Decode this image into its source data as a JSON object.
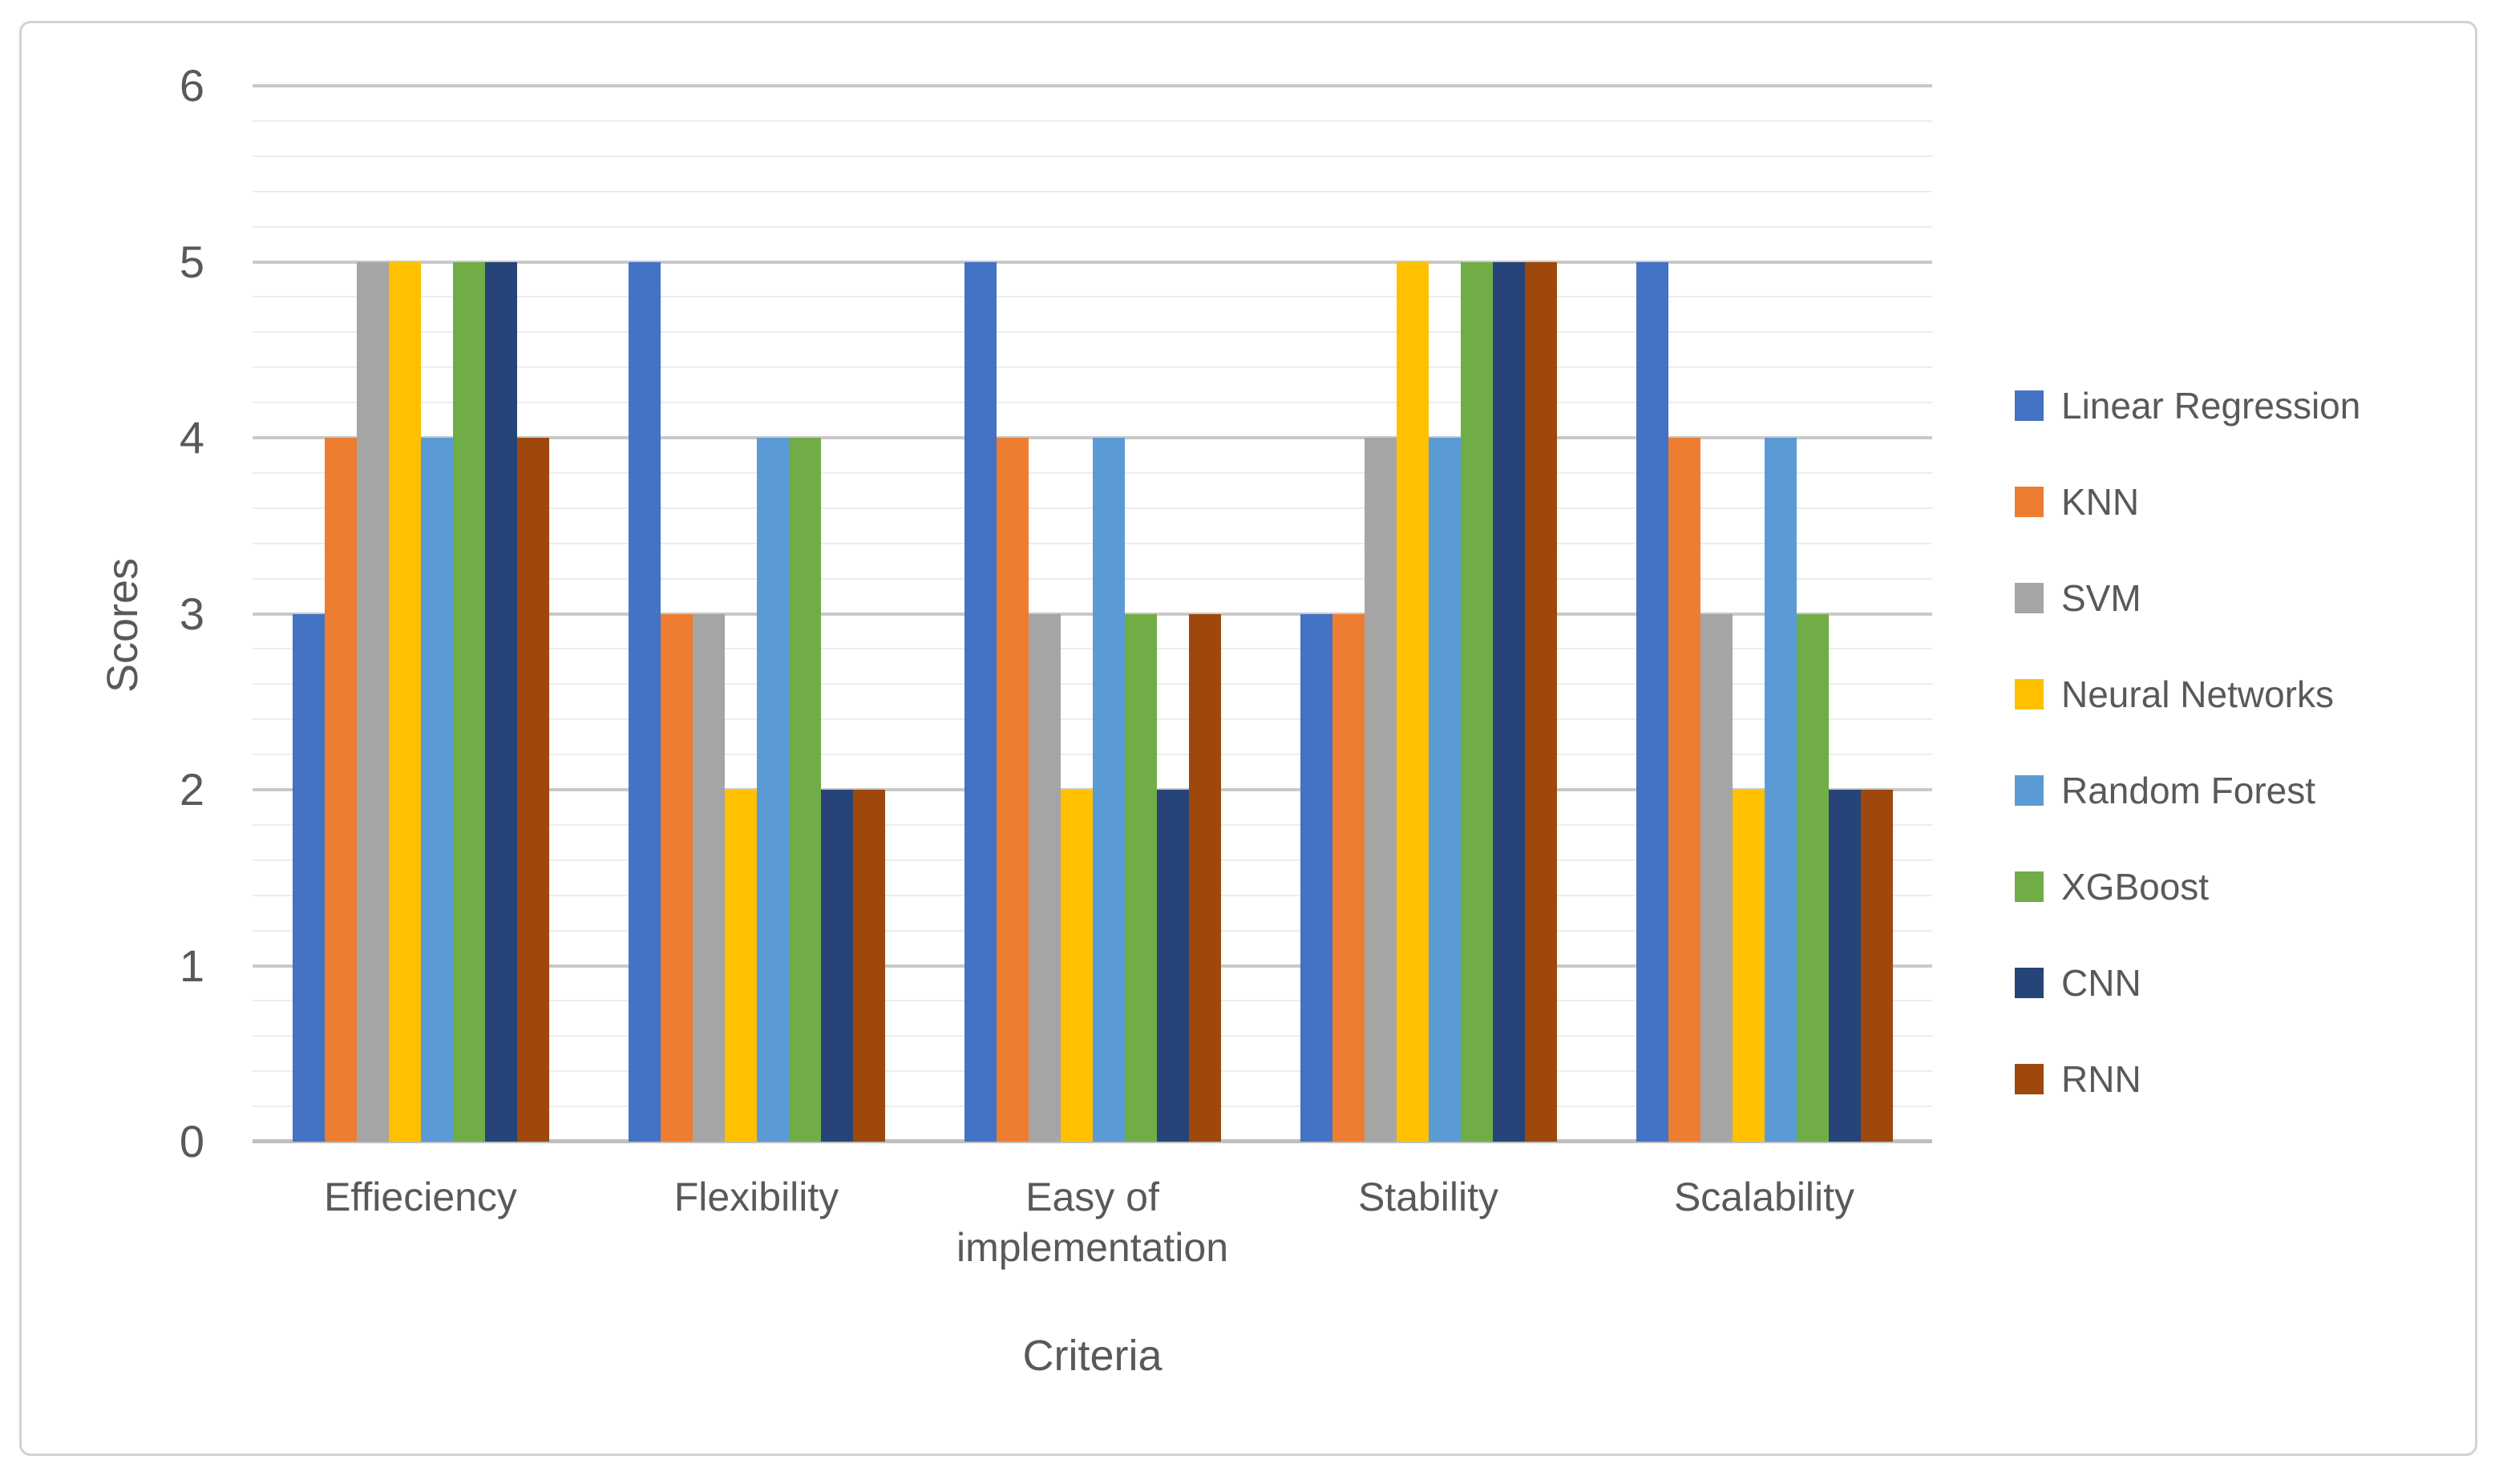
{
  "figure": {
    "background_color": "#ffffff",
    "border_color": "#d2d2d2",
    "text_color": "#595959"
  },
  "chart_data": {
    "type": "bar",
    "title": "",
    "xlabel": "Criteria",
    "ylabel": "Scores",
    "categories": [
      "Effieciency",
      "Flexibility",
      "Easy of implementation",
      "Stability",
      "Scalability"
    ],
    "series": [
      {
        "name": "Linear Regression",
        "color": "#4472C4",
        "values": [
          3,
          5,
          5,
          3,
          5
        ]
      },
      {
        "name": "KNN",
        "color": "#ED7D31",
        "values": [
          4,
          3,
          4,
          3,
          4
        ]
      },
      {
        "name": "SVM",
        "color": "#A5A5A5",
        "values": [
          5,
          3,
          3,
          4,
          3
        ]
      },
      {
        "name": "Neural Networks",
        "color": "#FFC000",
        "values": [
          5,
          2,
          2,
          5,
          2
        ]
      },
      {
        "name": "Random Forest",
        "color": "#5B9BD5",
        "values": [
          4,
          4,
          4,
          4,
          4
        ]
      },
      {
        "name": "XGBoost",
        "color": "#70AD47",
        "values": [
          5,
          4,
          3,
          5,
          3
        ]
      },
      {
        "name": "CNN",
        "color": "#264478",
        "values": [
          5,
          2,
          2,
          5,
          2
        ]
      },
      {
        "name": "RNN",
        "color": "#9E480E",
        "values": [
          4,
          2,
          3,
          5,
          2
        ]
      }
    ],
    "ylim": [
      0,
      6
    ],
    "y_major_unit": 1,
    "y_minor_unit": 0.2,
    "y_tick_labels": [
      "0",
      "1",
      "2",
      "3",
      "4",
      "5",
      "6"
    ],
    "grid": "horizontal major and minor gridlines",
    "legend_position": "right",
    "gridline_major_color": "#c9c9c9",
    "gridline_minor_color": "#ececec",
    "axis_line_color": "#bfbfbf"
  }
}
